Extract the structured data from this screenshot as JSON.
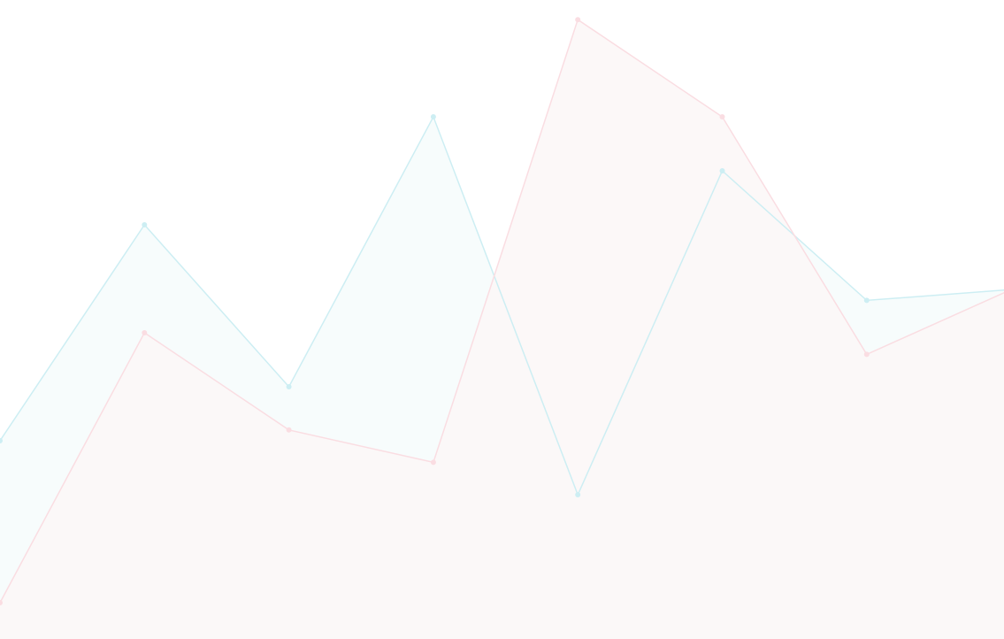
{
  "chart_data": {
    "type": "area",
    "x": [
      0,
      1,
      2,
      3,
      4,
      5,
      6,
      7
    ],
    "ylim": [
      0,
      60
    ],
    "grid": false,
    "legend": "none",
    "series": [
      {
        "values": [
          20,
          40,
          25,
          50,
          15,
          45,
          33,
          34
        ],
        "color": "#cdeef3",
        "fill": "#f6fbfc"
      },
      {
        "values": [
          5,
          30,
          21,
          18,
          59,
          50,
          28,
          34
        ],
        "color": "#fadde2",
        "fill": "#fcf7f7"
      }
    ]
  }
}
